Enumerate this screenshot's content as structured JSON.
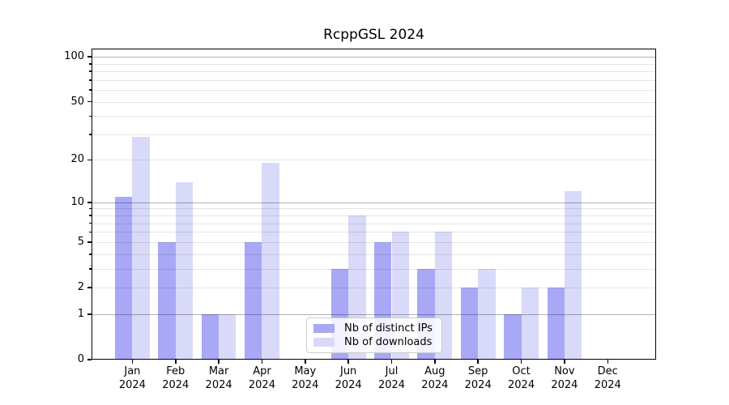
{
  "chart_data": {
    "type": "bar",
    "title": "RcppGSL 2024",
    "categories": [
      "Jan",
      "Feb",
      "Mar",
      "Apr",
      "May",
      "Jun",
      "Jul",
      "Aug",
      "Sep",
      "Oct",
      "Nov",
      "Dec"
    ],
    "x_tick_year": "2024",
    "series": [
      {
        "name": "Nb of distinct IPs",
        "color": "#a8a8f6",
        "values": [
          11,
          5,
          1,
          5,
          0,
          3,
          5,
          3,
          2,
          1,
          2,
          0
        ]
      },
      {
        "name": "Nb of downloads",
        "color": "#d9d9f9",
        "values": [
          29,
          14,
          1,
          19,
          0,
          8,
          6,
          6,
          3,
          2,
          12,
          0
        ]
      }
    ],
    "xlabel": "",
    "ylabel": "",
    "y_axis": {
      "scale": "log1p",
      "ylim": [
        0,
        110
      ],
      "tick_labels": [
        100,
        50,
        20,
        10,
        5,
        2,
        1,
        0
      ],
      "minor_ticks": [
        3,
        4,
        6,
        7,
        8,
        9,
        30,
        40,
        60,
        70,
        80,
        90
      ],
      "major_gridlines": [
        1,
        10,
        100
      ],
      "minor_gridlines": [
        2,
        3,
        4,
        5,
        6,
        7,
        8,
        9,
        20,
        30,
        40,
        50,
        60,
        70,
        80,
        90
      ]
    },
    "grid": "on",
    "legend_position": "bottom-center"
  }
}
